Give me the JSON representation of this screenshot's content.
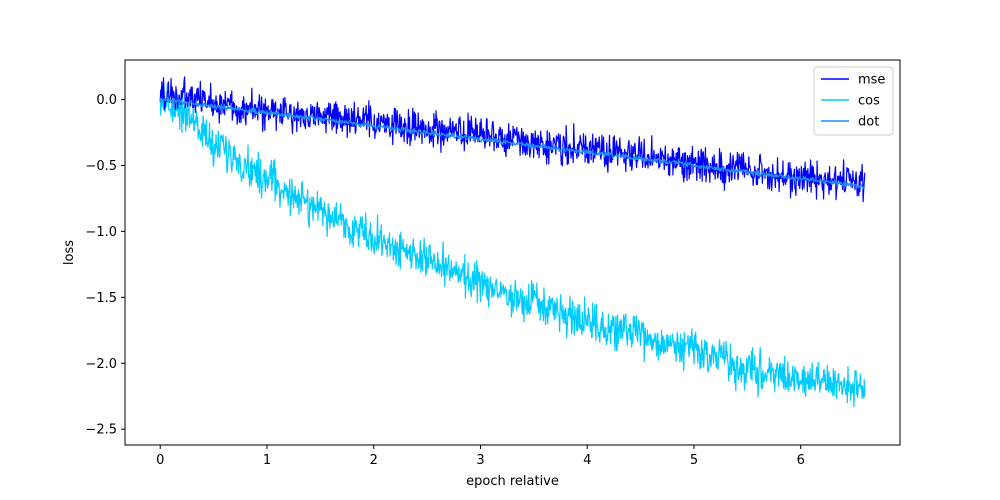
{
  "chart_data": {
    "type": "line",
    "title": "",
    "xlabel": "epoch relative",
    "ylabel": "loss",
    "xlim": [
      -0.33,
      6.93
    ],
    "ylim": [
      -2.62,
      0.3
    ],
    "xticks": [
      0,
      1,
      2,
      3,
      4,
      5,
      6
    ],
    "yticks": [
      0.0,
      -0.5,
      -1.0,
      -1.5,
      -2.0,
      -2.5
    ],
    "xtick_labels": [
      "0",
      "1",
      "2",
      "3",
      "4",
      "5",
      "6"
    ],
    "ytick_labels": [
      "0.0",
      "−0.5",
      "−1.0",
      "−1.5",
      "−2.0",
      "−2.5"
    ],
    "grid": false,
    "legend_position": "top-right",
    "x_range": [
      0,
      6.6
    ],
    "series": [
      {
        "name": "mse",
        "color": "#0000ff",
        "x": [
          0,
          0.5,
          1,
          1.5,
          2,
          2.5,
          3,
          3.5,
          4,
          4.5,
          5,
          5.5,
          6,
          6.6
        ],
        "values": [
          0.05,
          -0.02,
          -0.1,
          -0.12,
          -0.18,
          -0.22,
          -0.28,
          -0.32,
          -0.38,
          -0.43,
          -0.48,
          -0.55,
          -0.6,
          -0.63
        ],
        "noise_amplitude": 0.1
      },
      {
        "name": "cos",
        "color": "#00ccff",
        "x": [
          0,
          0.25,
          0.5,
          1,
          1.5,
          2,
          2.5,
          3,
          3.5,
          4,
          4.5,
          5,
          5.5,
          6,
          6.6
        ],
        "values": [
          0.0,
          -0.1,
          -0.35,
          -0.6,
          -0.85,
          -1.05,
          -1.22,
          -1.4,
          -1.55,
          -1.7,
          -1.8,
          -1.9,
          -2.05,
          -2.12,
          -2.2
        ],
        "noise_amplitude": 0.11
      },
      {
        "name": "dot",
        "color": "#1f8fff",
        "x": [
          0,
          1,
          2,
          3,
          4,
          5,
          6,
          6.6
        ],
        "values": [
          0.0,
          -0.1,
          -0.2,
          -0.3,
          -0.4,
          -0.5,
          -0.6,
          -0.66
        ],
        "noise_amplitude": 0.015
      }
    ]
  }
}
